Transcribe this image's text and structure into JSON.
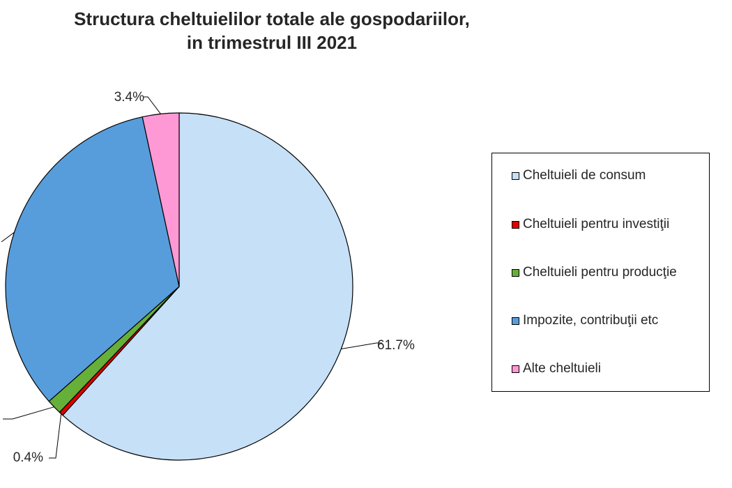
{
  "chart_data": {
    "type": "pie",
    "title": "Structura cheltuielilor totale ale gospodariilor,",
    "subtitle": "in trimestrul III 2021",
    "slices": [
      {
        "name": "Cheltuieli de consum",
        "value": 61.7,
        "label": "61.7%",
        "color": "#c5e0f7"
      },
      {
        "name": "Cheltuieli pentru investiţii",
        "value": 0.4,
        "label": "0.4%",
        "color": "#e00000"
      },
      {
        "name": "Cheltuieli pentru producţie",
        "value": 1.4,
        "label": "",
        "color": "#66b03a"
      },
      {
        "name": "Impozite, contribuţii etc",
        "value": 33.1,
        "label": "",
        "color": "#579ddb"
      },
      {
        "name": "Alte cheltuieli",
        "value": 3.4,
        "label": "3.4%",
        "color": "#ff99d6"
      }
    ],
    "start": "top",
    "direction": "clockwise",
    "legend_position": "right"
  }
}
